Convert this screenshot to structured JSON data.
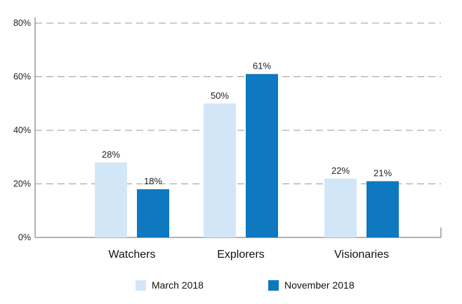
{
  "chart_data": {
    "type": "bar",
    "title": "",
    "xlabel": "",
    "ylabel": "",
    "categories": [
      "Watchers",
      "Explorers",
      "Visionaries"
    ],
    "series": [
      {
        "name": "March 2018",
        "values": [
          28,
          50,
          22
        ],
        "labels": [
          "28%",
          "50%",
          "22%"
        ],
        "color": "#d3e6f8"
      },
      {
        "name": "November 2018",
        "values": [
          18,
          61,
          21
        ],
        "labels": [
          "18%",
          "61%",
          "21%"
        ],
        "color": "#0e78c0"
      }
    ],
    "ylim": [
      0,
      80
    ],
    "yticks": [
      {
        "value": 0,
        "label": "0%"
      },
      {
        "value": 20,
        "label": "20%"
      },
      {
        "value": 40,
        "label": "40%"
      },
      {
        "value": 60,
        "label": "60%"
      },
      {
        "value": 80,
        "label": "80%"
      }
    ],
    "grid": true,
    "grid_style": "dashed",
    "legend_position": "bottom-center"
  }
}
